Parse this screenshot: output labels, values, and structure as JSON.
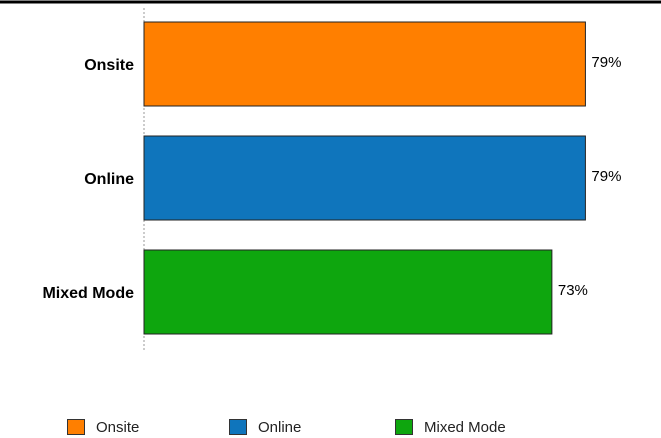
{
  "chart_data": {
    "type": "bar",
    "orientation": "horizontal",
    "categories": [
      "Onsite",
      "Online",
      "Mixed Mode"
    ],
    "values": [
      79,
      79,
      73
    ],
    "value_labels": [
      "79%",
      "79%",
      "73%"
    ],
    "colors": [
      "#ff7f00",
      "#0f75bc",
      "#0ea60e"
    ],
    "xlim": [
      0,
      80
    ],
    "grid": false,
    "legend_position": "bottom",
    "legend": [
      "Onsite",
      "Online",
      "Mixed Mode"
    ],
    "title": "",
    "xlabel": "",
    "ylabel": ""
  }
}
